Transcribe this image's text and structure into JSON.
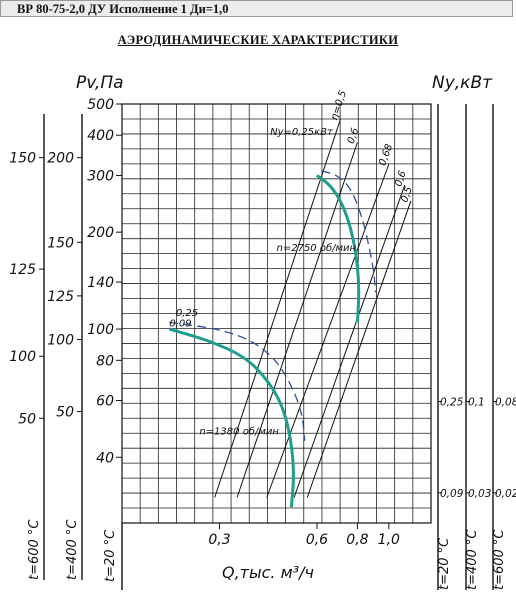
{
  "header": {
    "title": "ВР 80-75-2,0 ДУ Исполнение 1 Ди=1,0"
  },
  "chart_data": {
    "type": "line",
    "title": "АЭРОДИНАМИЧЕСКИЕ ХАРАКТЕРИСТИКИ",
    "xlabel": "Q,тыс. м³/ч",
    "ylabel": "Pv,Па",
    "right_label": "Nу,кВт",
    "x_ticks": [
      "0,3",
      "0,6",
      "0,8",
      "1,0"
    ],
    "y_ticks": [
      "500",
      "400",
      "300",
      "200",
      "140",
      "100",
      "80",
      "60",
      "40"
    ],
    "x_tick_values": [
      0.3,
      0.6,
      0.8,
      1.0
    ],
    "y_tick_values": [
      500,
      400,
      300,
      200,
      140,
      100,
      80,
      60,
      40
    ],
    "scale": "log-log",
    "xlim": [
      0.15,
      1.35
    ],
    "ylim": [
      25,
      500
    ],
    "grid": true,
    "left_axes": [
      {
        "temp_label": "t=600 °C",
        "ticks": [
          {
            "label": "150",
            "at": 436
          },
          {
            "label": "125",
            "at": 303
          },
          {
            "label": "100",
            "at": 199
          },
          {
            "label": "50",
            "at": 125
          }
        ]
      },
      {
        "temp_label": "t=400 °C",
        "ticks": [
          {
            "label": "200",
            "at": 436
          },
          {
            "label": "150",
            "at": 335
          },
          {
            "label": "125",
            "at": 271
          },
          {
            "label": "100",
            "at": 219
          },
          {
            "label": "50",
            "at": 133
          }
        ]
      }
    ],
    "bottom_left_temp": "t=20 °C",
    "right_axes": [
      {
        "temp_label": "t=20 °C",
        "ticks": [
          {
            "label": "0,25",
            "at": 145
          },
          {
            "label": "0,09",
            "at": 36
          }
        ]
      },
      {
        "temp_label": "t=400 °C",
        "ticks": [
          {
            "label": "0,1",
            "at": 145
          },
          {
            "label": "0,03",
            "at": 36
          }
        ]
      },
      {
        "temp_label": "t=600 °C",
        "ticks": [
          {
            "label": "0,08",
            "at": 145
          },
          {
            "label": "0,02",
            "at": 36
          }
        ]
      }
    ],
    "series": [
      {
        "name": "n=2750 об/мин",
        "kind": "pressure",
        "color": "#1f9e8e",
        "points": [
          [
            0.6,
            300
          ],
          [
            0.66,
            280
          ],
          [
            0.72,
            245
          ],
          [
            0.77,
            200
          ],
          [
            0.8,
            160
          ],
          [
            0.81,
            130
          ],
          [
            0.8,
            105
          ]
        ]
      },
      {
        "name": "n=1380 об/мин",
        "kind": "pressure",
        "color": "#1f9e8e",
        "points": [
          [
            0.21,
            100
          ],
          [
            0.28,
            92
          ],
          [
            0.36,
            82
          ],
          [
            0.42,
            70
          ],
          [
            0.47,
            58
          ],
          [
            0.5,
            45
          ],
          [
            0.51,
            35
          ],
          [
            0.5,
            28
          ]
        ]
      },
      {
        "name": "power n=2750",
        "kind": "power",
        "color": "#2d4f9e",
        "points": [
          [
            0.62,
            310
          ],
          [
            0.7,
            300
          ],
          [
            0.77,
            270
          ],
          [
            0.83,
            220
          ],
          [
            0.87,
            180
          ],
          [
            0.9,
            150
          ],
          [
            0.91,
            130
          ]
        ]
      },
      {
        "name": "power n=1380",
        "kind": "power",
        "color": "#2d4f9e",
        "points": [
          [
            0.21,
            105
          ],
          [
            0.3,
            100
          ],
          [
            0.38,
            92
          ],
          [
            0.45,
            80
          ],
          [
            0.5,
            67
          ],
          [
            0.54,
            55
          ],
          [
            0.55,
            45
          ]
        ]
      }
    ],
    "efficiency_rays": [
      {
        "label": "η=0,5",
        "from": [
          0.29,
          30
        ],
        "to": [
          0.71,
          450
        ]
      },
      {
        "label": "0,6",
        "from": [
          0.34,
          30
        ],
        "to": [
          0.8,
          380
        ]
      },
      {
        "label": "0,68",
        "from": [
          0.42,
          30
        ],
        "to": [
          1.0,
          325
        ]
      },
      {
        "label": "0,6",
        "from": [
          0.51,
          30
        ],
        "to": [
          1.12,
          280
        ]
      },
      {
        "label": "0,5",
        "from": [
          0.56,
          30
        ],
        "to": [
          1.17,
          250
        ]
      }
    ],
    "annotations": [
      {
        "text": "Nу=0,25кВт",
        "at": [
          0.43,
          400
        ]
      },
      {
        "text": "0,25",
        "at": [
          0.22,
          110
        ]
      },
      {
        "text": "0,09",
        "at": [
          0.21,
          102
        ]
      },
      {
        "text": "n=2750 об/мин",
        "at": [
          0.45,
          175
        ]
      },
      {
        "text": "n=1380 об/мин",
        "at": [
          0.26,
          47
        ]
      }
    ]
  }
}
